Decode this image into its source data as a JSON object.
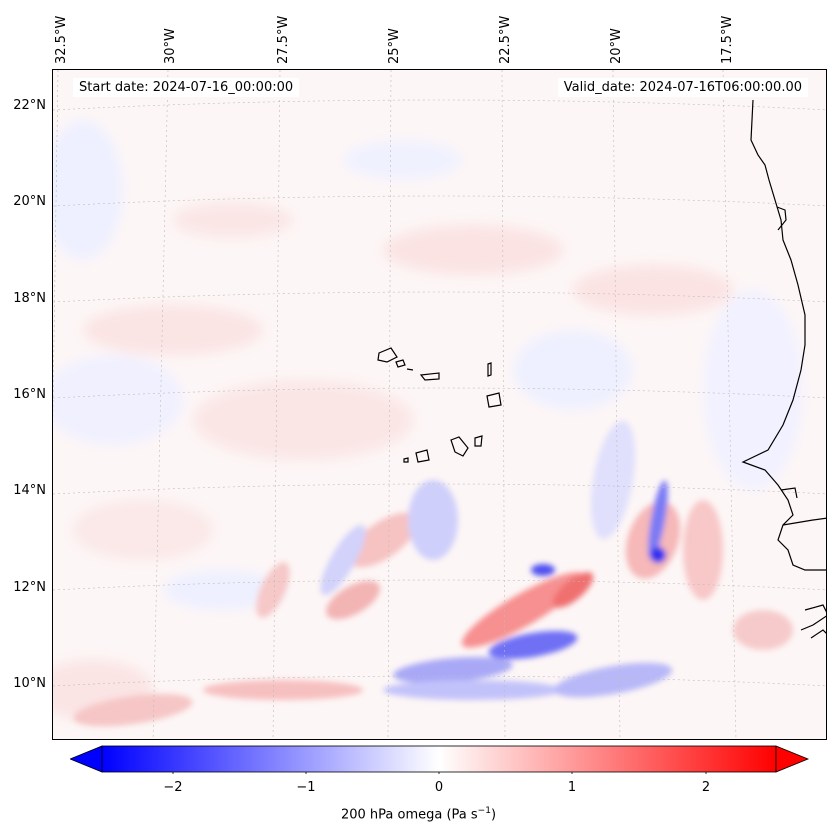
{
  "header": {
    "start_date": "Start date: 2024-07-16_00:00:00",
    "valid_date": "Valid_date: 2024-07-16T06:00:00.00"
  },
  "axes": {
    "lon_labels": [
      "32.5°W",
      "30°W",
      "27.5°W",
      "25°W",
      "22.5°W",
      "20°W",
      "17.5°W"
    ],
    "lat_labels": [
      "22°N",
      "20°N",
      "18°N",
      "16°N",
      "14°N",
      "12°N",
      "10°N"
    ]
  },
  "colorbar": {
    "ticks": [
      "−2",
      "−1",
      "0",
      "1",
      "2"
    ],
    "label_text": "200 hPa omega (Pa s",
    "label_sup": "−1",
    "label_end": ")",
    "min": -2.6,
    "max": 2.6,
    "cmap": "bwr",
    "colors": {
      "negative": "#0000ff",
      "zero": "#ffffff",
      "positive": "#ff0000"
    }
  },
  "map": {
    "region": "Cabo Verde / West Africa coast",
    "lon_range": [
      -33,
      -16
    ],
    "lat_range": [
      9,
      23
    ],
    "field": "200 hPa omega"
  }
}
